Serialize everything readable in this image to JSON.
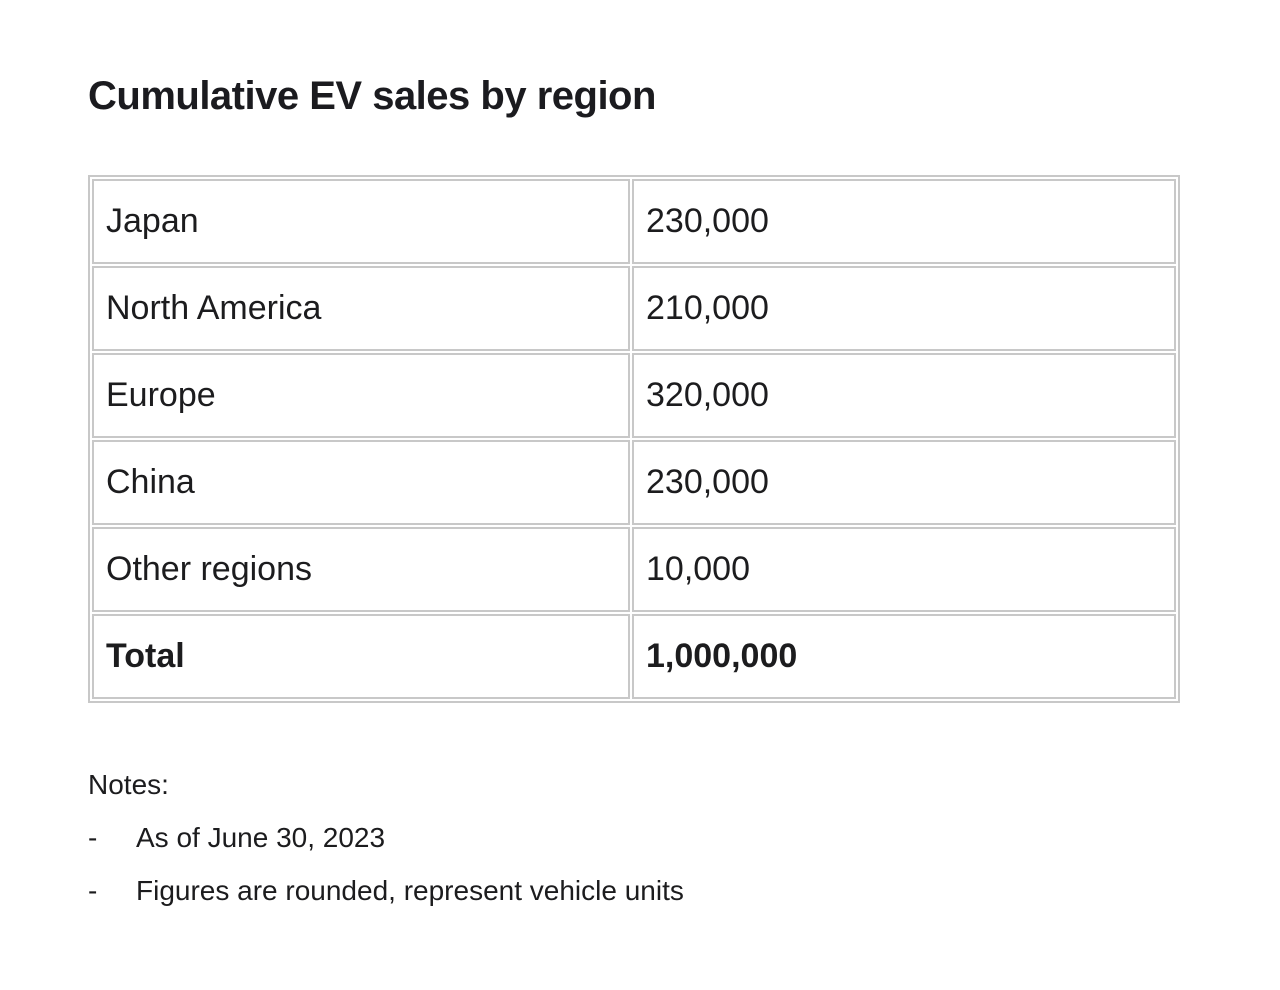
{
  "page": {
    "title": "Cumulative EV sales by region"
  },
  "table": {
    "rows": [
      {
        "label": "Japan",
        "value": "230,000"
      },
      {
        "label": "North America",
        "value": "210,000"
      },
      {
        "label": "Europe",
        "value": "320,000"
      },
      {
        "label": "China",
        "value": "230,000"
      },
      {
        "label": "Other regions",
        "value": "10,000"
      },
      {
        "label": "Total",
        "value": "1,000,000"
      }
    ]
  },
  "notes": {
    "heading": "Notes:",
    "bullet_char": "-",
    "items": [
      "As of June 30, 2023",
      "Figures are rounded, represent vehicle units"
    ]
  },
  "colors": {
    "text": "#1c1c1e",
    "border": "#c8c8c8",
    "background": "#ffffff"
  }
}
